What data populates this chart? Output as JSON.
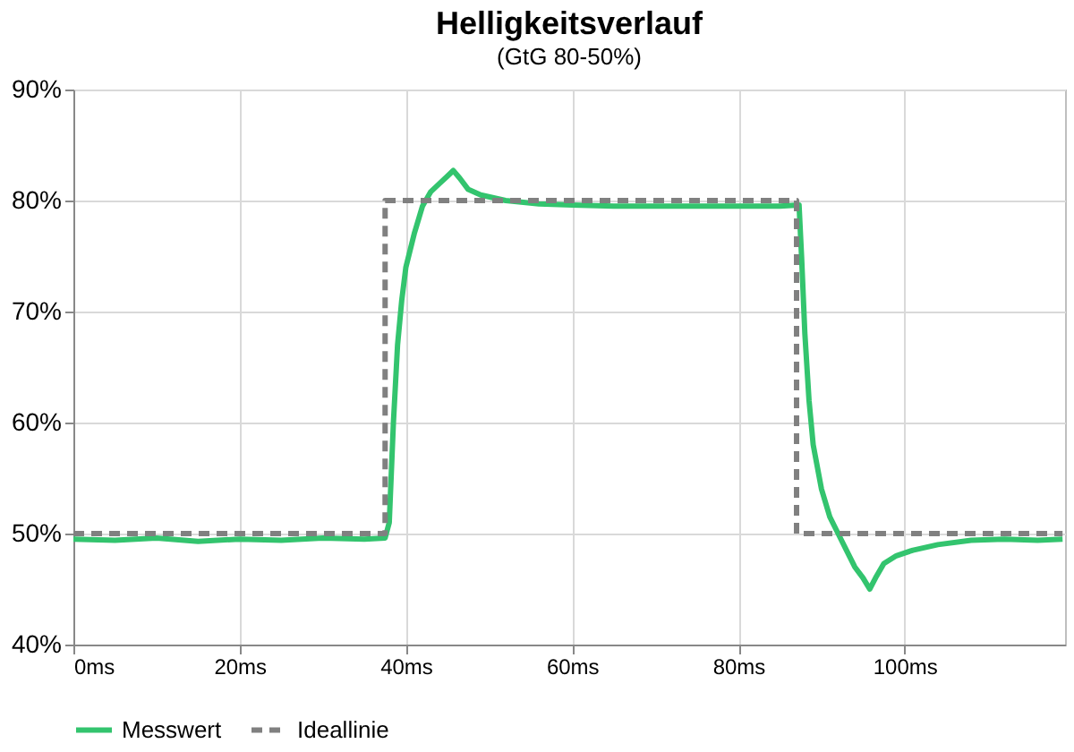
{
  "chart_data": {
    "type": "line",
    "title": "Helligkeitsverlauf",
    "subtitle": "(GtG 80-50%)",
    "xlim": [
      0,
      119.3
    ],
    "ylim": [
      40,
      90
    ],
    "xticks": [
      {
        "value": 0,
        "label": "0ms"
      },
      {
        "value": 20,
        "label": "20ms"
      },
      {
        "value": 40,
        "label": "40ms"
      },
      {
        "value": 60,
        "label": "60ms"
      },
      {
        "value": 80,
        "label": "80ms"
      },
      {
        "value": 100,
        "label": "100ms"
      }
    ],
    "yticks": [
      {
        "value": 40,
        "label": "40%"
      },
      {
        "value": 50,
        "label": "50%"
      },
      {
        "value": 60,
        "label": "60%"
      },
      {
        "value": 70,
        "label": "70%"
      },
      {
        "value": 80,
        "label": "80%"
      },
      {
        "value": 90,
        "label": "90%"
      }
    ],
    "grid": true,
    "legend": "bottom",
    "marker": "none",
    "series": [
      {
        "name": "Messwert",
        "color": "#33c46e",
        "line_style": "solid",
        "x": [
          0,
          5,
          10,
          15,
          20,
          25,
          30,
          35,
          37.5,
          38,
          38.5,
          39,
          39.5,
          40,
          41,
          42,
          43,
          44,
          45,
          45.7,
          46.5,
          47.5,
          49,
          52,
          56,
          60,
          65,
          70,
          75,
          80,
          85,
          87.3,
          87.6,
          88,
          88.5,
          89,
          90,
          91,
          92,
          93,
          94,
          95,
          95.8,
          96.5,
          97.5,
          99,
          101,
          104,
          108,
          112,
          116,
          119
        ],
        "values": [
          49.5,
          49.4,
          49.6,
          49.3,
          49.5,
          49.4,
          49.6,
          49.5,
          49.6,
          51,
          60,
          67,
          71,
          74,
          77,
          79.5,
          80.8,
          81.5,
          82.2,
          82.7,
          82,
          81,
          80.5,
          80,
          79.7,
          79.6,
          79.5,
          79.5,
          79.5,
          79.5,
          79.5,
          79.6,
          75,
          68,
          62,
          58,
          54,
          51.5,
          50,
          48.5,
          47,
          46,
          45,
          46,
          47.3,
          48,
          48.5,
          49,
          49.4,
          49.5,
          49.4,
          49.5
        ]
      },
      {
        "name": "Ideallinie",
        "color": "#808080",
        "line_style": "dashed",
        "x": [
          0,
          37.5,
          37.5,
          87,
          87,
          119
        ],
        "values": [
          50,
          50,
          80,
          80,
          50,
          50
        ]
      }
    ]
  }
}
